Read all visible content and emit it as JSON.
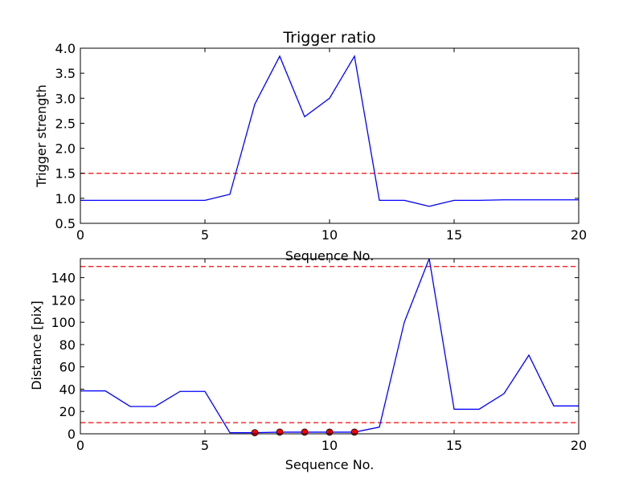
{
  "chart_data": [
    {
      "type": "line",
      "title": "Trigger ratio",
      "xlabel": "Sequence No.",
      "ylabel": "Trigger strength",
      "xlim": [
        0,
        20
      ],
      "ylim": [
        0.5,
        4.0
      ],
      "xticks": [
        0,
        5,
        10,
        15,
        20
      ],
      "xtick_labels": [
        "0",
        "5",
        "10",
        "15",
        "20"
      ],
      "yticks": [
        0.5,
        1.0,
        1.5,
        2.0,
        2.5,
        3.0,
        3.5,
        4.0
      ],
      "ytick_labels": [
        "0.5",
        "1.0",
        "1.5",
        "2.0",
        "2.5",
        "3.0",
        "3.5",
        "4.0"
      ],
      "grid": false,
      "series": [
        {
          "color": "#0000ff",
          "x": [
            0,
            1,
            2,
            3,
            4,
            5,
            6,
            7,
            8,
            9,
            10,
            11,
            12,
            13,
            14,
            15,
            16,
            17,
            18,
            19,
            20
          ],
          "y": [
            0.96,
            0.96,
            0.96,
            0.96,
            0.96,
            0.96,
            1.08,
            2.88,
            3.84,
            2.63,
            3.0,
            3.84,
            0.96,
            0.96,
            0.84,
            0.96,
            0.96,
            0.97,
            0.97,
            0.97,
            0.97
          ]
        }
      ],
      "hlines": [
        {
          "y": 1.5,
          "color": "#ff0000",
          "style": "dashed"
        }
      ]
    },
    {
      "type": "line",
      "title": "",
      "xlabel": "Sequence No.",
      "ylabel": "Distance [pix]",
      "xlim": [
        0,
        20
      ],
      "ylim": [
        0,
        157
      ],
      "xticks": [
        0,
        5,
        10,
        15,
        20
      ],
      "xtick_labels": [
        "0",
        "5",
        "10",
        "15",
        "20"
      ],
      "yticks": [
        0,
        20,
        40,
        60,
        80,
        100,
        120,
        140
      ],
      "ytick_labels": [
        "0",
        "20",
        "40",
        "60",
        "80",
        "100",
        "120",
        "140"
      ],
      "grid": false,
      "series": [
        {
          "color": "#0000ff",
          "x": [
            0,
            1,
            2,
            3,
            4,
            5,
            6,
            7,
            8,
            9,
            10,
            11,
            12,
            13,
            14,
            15,
            16,
            17,
            18,
            19,
            20
          ],
          "y": [
            38.5,
            38.5,
            24.5,
            24.5,
            38,
            38,
            1,
            1,
            1.5,
            1.5,
            1.5,
            1.5,
            6,
            100,
            157,
            22,
            22,
            36,
            70.5,
            25,
            25
          ]
        }
      ],
      "markers": {
        "color": "#ff0000",
        "x": [
          7,
          8,
          9,
          10,
          11
        ],
        "y": [
          1,
          1.5,
          1.5,
          1.5,
          1.5
        ]
      },
      "hlines": [
        {
          "y": 150,
          "color": "#ff0000",
          "style": "dashed"
        },
        {
          "y": 10,
          "color": "#ff0000",
          "style": "dashed"
        }
      ]
    }
  ]
}
